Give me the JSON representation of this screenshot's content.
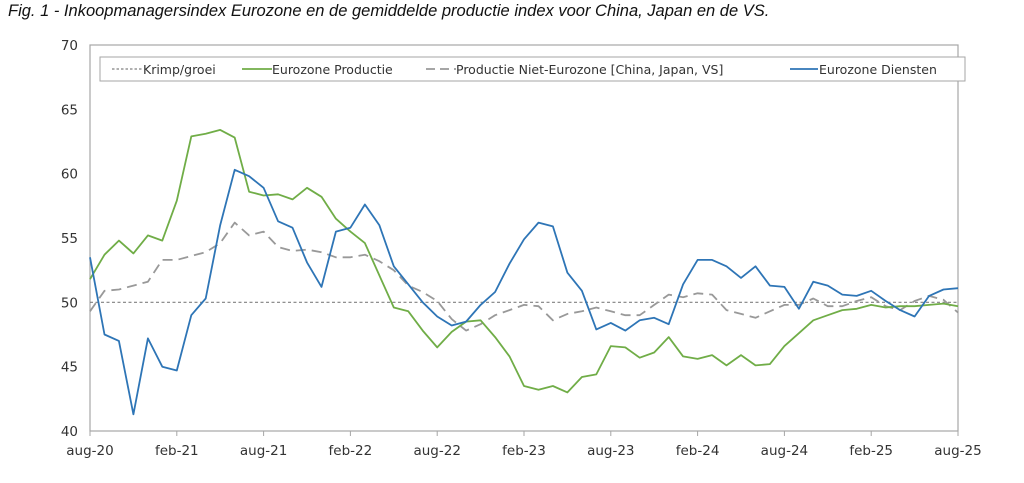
{
  "title": "Fig. 1 - Inkoopmanagersindex Eurozone en de gemiddelde productie index voor China, Japan en de VS.",
  "chart_data": {
    "type": "line",
    "title": "Fig. 1 - Inkoopmanagersindex Eurozone en de gemiddelde productie index voor China, Japan en de VS.",
    "xlabel": "",
    "ylabel": "",
    "ylim": [
      40,
      70
    ],
    "yticks": [
      "40",
      "45",
      "50",
      "55",
      "60",
      "65",
      "70"
    ],
    "xticks": [
      "aug-20",
      "feb-21",
      "aug-21",
      "feb-22",
      "aug-22",
      "feb-23",
      "aug-23",
      "feb-24",
      "aug-24",
      "feb-25",
      "aug-25"
    ],
    "x_start": "aug-20",
    "x_end": "aug-25",
    "legend_position": "top",
    "grid": false,
    "reference_line": {
      "name": "Krimp/groei",
      "value": 50
    },
    "series": [
      {
        "name": "Krimp/groei",
        "style": "dotted",
        "color": "#808080",
        "values": [
          50,
          50,
          50,
          50,
          50,
          50,
          50,
          50,
          50,
          50,
          50,
          50,
          50,
          50,
          50,
          50,
          50,
          50,
          50,
          50,
          50,
          50,
          50,
          50,
          50,
          50,
          50,
          50,
          50,
          50,
          50,
          50,
          50,
          50,
          50,
          50,
          50,
          50,
          50,
          50,
          50,
          50,
          50,
          50,
          50,
          50,
          50,
          50,
          50,
          50,
          50,
          50,
          50,
          50,
          50,
          50,
          50,
          50,
          50,
          50,
          50
        ]
      },
      {
        "name": "Eurozone Productie",
        "style": "solid",
        "color": "#70ad47",
        "values": [
          51.8,
          53.7,
          54.8,
          53.8,
          55.2,
          54.8,
          57.9,
          62.9,
          63.1,
          63.4,
          62.8,
          58.6,
          58.3,
          58.4,
          58.0,
          58.9,
          58.2,
          56.5,
          55.5,
          54.6,
          52.1,
          49.6,
          49.3,
          47.8,
          46.5,
          47.7,
          48.5,
          48.6,
          47.3,
          45.8,
          43.5,
          43.2,
          43.5,
          43.0,
          44.2,
          44.4,
          46.6,
          46.5,
          45.7,
          46.1,
          47.3,
          45.8,
          45.6,
          45.9,
          45.1,
          45.9,
          45.1,
          45.2,
          46.6,
          47.6,
          48.6,
          49.0,
          49.4,
          49.5,
          49.8,
          49.6,
          49.7,
          49.7,
          49.8,
          49.9,
          49.7
        ]
      },
      {
        "name": "Productie Niet-Eurozone [China, Japan, VS]",
        "style": "dashed",
        "color": "#999999",
        "values": [
          49.3,
          50.9,
          51.0,
          51.3,
          51.6,
          53.3,
          53.3,
          53.6,
          53.9,
          54.6,
          56.2,
          55.2,
          55.5,
          54.3,
          54.0,
          54.1,
          53.9,
          53.5,
          53.5,
          53.7,
          53.2,
          52.5,
          51.3,
          50.8,
          50.1,
          48.7,
          47.8,
          48.3,
          49.0,
          49.4,
          49.8,
          49.7,
          48.6,
          49.1,
          49.3,
          49.6,
          49.3,
          49.0,
          49.0,
          49.8,
          50.6,
          50.4,
          50.7,
          50.6,
          49.4,
          49.1,
          48.8,
          49.3,
          49.8,
          49.8,
          50.3,
          49.7,
          49.7,
          50.1,
          50.4,
          49.7,
          49.4,
          50.1,
          50.5,
          50.2,
          49.2
        ]
      },
      {
        "name": "Eurozone Diensten",
        "style": "solid",
        "color": "#2e75b6",
        "values": [
          53.5,
          47.5,
          47.0,
          41.3,
          47.2,
          45.0,
          44.7,
          49.0,
          50.3,
          56.0,
          60.3,
          59.8,
          58.9,
          56.3,
          55.8,
          53.1,
          51.2,
          55.5,
          55.8,
          57.6,
          56.0,
          52.8,
          51.4,
          50.0,
          48.9,
          48.2,
          48.5,
          49.8,
          50.8,
          53.0,
          54.9,
          56.2,
          55.9,
          52.3,
          50.9,
          47.9,
          48.4,
          47.8,
          48.6,
          48.8,
          48.3,
          51.4,
          53.3,
          53.3,
          52.8,
          51.9,
          52.8,
          51.3,
          51.2,
          49.5,
          51.6,
          51.3,
          50.6,
          50.5,
          50.9,
          50.1,
          49.4,
          48.9,
          50.5,
          51.0,
          51.1
        ]
      }
    ]
  },
  "legend": {
    "items": [
      {
        "label": "Krimp/groei"
      },
      {
        "label": "Eurozone Productie"
      },
      {
        "label": "Productie Niet-Eurozone [China, Japan, VS]"
      },
      {
        "label": "Eurozone Diensten"
      }
    ]
  }
}
